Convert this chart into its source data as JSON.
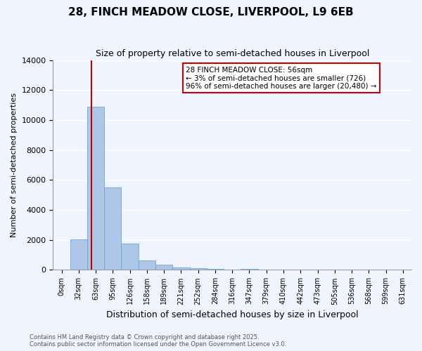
{
  "title": "28, FINCH MEADOW CLOSE, LIVERPOOL, L9 6EB",
  "subtitle": "Size of property relative to semi-detached houses in Liverpool",
  "xlabel": "Distribution of semi-detached houses by size in Liverpool",
  "ylabel": "Number of semi-detached properties",
  "footer_line1": "Contains HM Land Registry data © Crown copyright and database right 2025.",
  "footer_line2": "Contains public sector information licensed under the Open Government Licence v3.0.",
  "annotation_line1": "28 FINCH MEADOW CLOSE: 56sqm",
  "annotation_line2": "← 3% of semi-detached houses are smaller (726)",
  "annotation_line3": "96% of semi-detached houses are larger (20,480) →",
  "bar_color": "#aec6e8",
  "bar_edge_color": "#5a9fd4",
  "red_line_color": "#cc0000",
  "background_color": "#f0f4ff",
  "grid_color": "#ffffff",
  "categories": [
    "0sqm",
    "32sqm",
    "63sqm",
    "95sqm",
    "126sqm",
    "158sqm",
    "189sqm",
    "221sqm",
    "252sqm",
    "284sqm",
    "316sqm",
    "347sqm",
    "379sqm",
    "410sqm",
    "442sqm",
    "473sqm",
    "505sqm",
    "536sqm",
    "568sqm",
    "599sqm",
    "631sqm"
  ],
  "values": [
    0,
    2050,
    10900,
    5500,
    1750,
    650,
    350,
    150,
    100,
    50,
    30,
    90,
    0,
    0,
    0,
    0,
    0,
    0,
    0,
    0,
    0
  ],
  "ylim": [
    0,
    14000
  ],
  "yticks": [
    0,
    2000,
    4000,
    6000,
    8000,
    10000,
    12000,
    14000
  ],
  "red_line_x": 1.75
}
